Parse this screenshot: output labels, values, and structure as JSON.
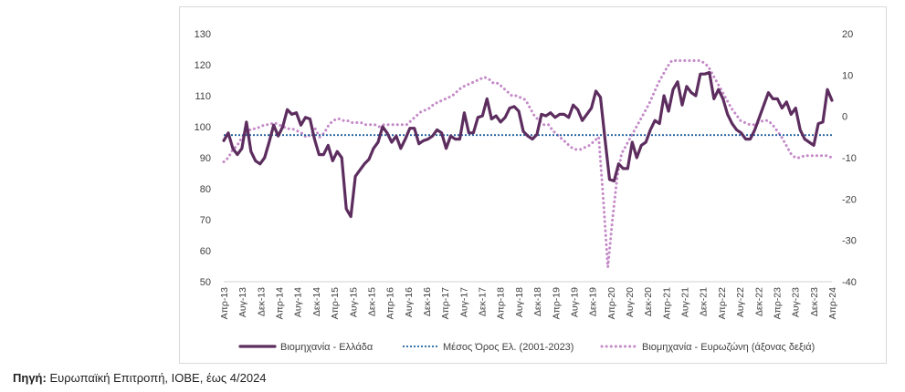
{
  "chart_data": {
    "type": "line",
    "title": "",
    "xlabel": "",
    "ylabel": "",
    "y_left_lim": [
      50,
      130
    ],
    "y_left_ticks": [
      50,
      60,
      70,
      80,
      90,
      100,
      110,
      120,
      130
    ],
    "y_right_lim": [
      -40,
      20
    ],
    "y_right_ticks": [
      -40,
      -30,
      -20,
      -10,
      0,
      10,
      20
    ],
    "grid": false,
    "legend_position": "bottom",
    "x_tick_labels": [
      "Απρ-13",
      "Αυγ-13",
      "Δεκ-13",
      "Απρ-14",
      "Αυγ-14",
      "Δεκ-14",
      "Απρ-15",
      "Αυγ-15",
      "Δεκ-15",
      "Απρ-16",
      "Αυγ-16",
      "Δεκ-16",
      "Απρ-17",
      "Αυγ-17",
      "Δεκ-17",
      "Απρ-18",
      "Αυγ-18",
      "Δεκ-18",
      "Απρ-19",
      "Αυγ-19",
      "Δεκ-19",
      "Απρ-20",
      "Αυγ-20",
      "Δεκ-20",
      "Απρ-21",
      "Αυγ-21",
      "Δεκ-21",
      "Απρ-22",
      "Αυγ-22",
      "Δεκ-22",
      "Απρ-23",
      "Αυγ-23",
      "Δεκ-23",
      "Απρ-24"
    ],
    "x_start": "Απρ-13",
    "x_end": "Απρ-24",
    "series": [
      {
        "name": "Βιομηχανία  - Ελλάδα",
        "axis": "left",
        "color": "#5c2d5e",
        "style": "solid",
        "values": [
          95.5,
          98,
          93,
          91,
          93,
          101.5,
          92,
          89,
          88,
          90,
          95,
          100.5,
          97,
          100,
          105.5,
          104,
          104.5,
          100.5,
          103,
          102.5,
          96,
          91,
          91,
          94,
          89,
          92,
          90,
          73.5,
          71,
          84,
          86,
          88,
          89.5,
          93,
          95,
          100,
          98,
          95,
          97,
          93,
          96,
          99.5,
          99.5,
          94.5,
          95.5,
          96,
          97,
          99,
          98,
          93,
          97,
          96,
          96,
          104.5,
          98,
          98,
          103,
          103.5,
          109,
          102.5,
          103.5,
          101.5,
          103,
          106,
          106.5,
          105,
          98.5,
          97,
          96,
          97.5,
          104,
          103.5,
          104.5,
          103,
          104,
          104,
          103,
          107,
          105.5,
          102,
          104,
          106,
          111.5,
          109.5,
          96,
          83,
          82.5,
          88,
          86.5,
          86.5,
          95,
          90,
          94,
          95,
          99,
          102,
          101,
          110,
          105,
          112,
          114.5,
          107,
          113,
          111,
          110,
          117,
          117,
          117.5,
          109,
          112,
          109,
          104,
          101,
          99,
          98,
          96,
          96,
          99,
          103,
          107,
          111,
          109,
          109,
          106,
          108,
          104,
          106,
          99,
          96,
          95,
          94,
          101,
          101.5,
          112,
          108.5
        ]
      },
      {
        "name": "Μέσος Όρος Ελ. (2001-2023)",
        "axis": "left",
        "color": "#1f5f9e",
        "style": "dotted",
        "values": [
          97.3
        ]
      },
      {
        "name": "Βιομηχανία - Ευρωζώνη (άξονας δεξιά)",
        "axis": "right",
        "color": "#c48ac8",
        "style": "dotted",
        "values": [
          -11,
          -10,
          -8,
          -7,
          -5,
          -4,
          -3,
          -3,
          -2.5,
          -2,
          -2,
          -1.5,
          -2,
          -2.5,
          -3,
          -3,
          -3.5,
          -4,
          -5,
          -4.5,
          -3,
          -5,
          -4,
          -2,
          -1,
          -0.5,
          -1,
          -1,
          -1.5,
          -1.5,
          -1.5,
          -2,
          -2,
          -2,
          -2.5,
          -2,
          -2,
          -2,
          -2,
          -2,
          -2,
          -1,
          0,
          1,
          1.5,
          2,
          3,
          3.5,
          4,
          4.5,
          5,
          6,
          7,
          7.5,
          8,
          8.5,
          9,
          9.5,
          9,
          8,
          8,
          7,
          6,
          5,
          5,
          4.5,
          4,
          2,
          0,
          -1,
          -2,
          -2,
          -3.5,
          -4.5,
          -5.5,
          -6.5,
          -7.5,
          -8,
          -8,
          -7.5,
          -7,
          -6,
          -5,
          -20,
          -36.5,
          -25,
          -15,
          -9,
          -7,
          -5,
          -3,
          -1,
          1,
          3,
          5.5,
          8,
          10,
          12,
          13.5,
          13.5,
          13.5,
          13.5,
          13.5,
          13.5,
          13.5,
          13,
          12,
          10,
          8,
          6,
          4,
          2,
          0.5,
          -1,
          -1.5,
          -2,
          -2,
          -1.5,
          -1,
          -1,
          -2,
          -3.5,
          -5,
          -7,
          -9,
          -10,
          -10,
          -9.5,
          -9.5,
          -9.5,
          -9.5,
          -9.5,
          -9.5,
          -10
        ]
      }
    ]
  },
  "source": {
    "label": "Πηγή:",
    "text": " Ευρωπαϊκή Επιτροπή, ΙΟΒΕ, έως 4/2024"
  }
}
